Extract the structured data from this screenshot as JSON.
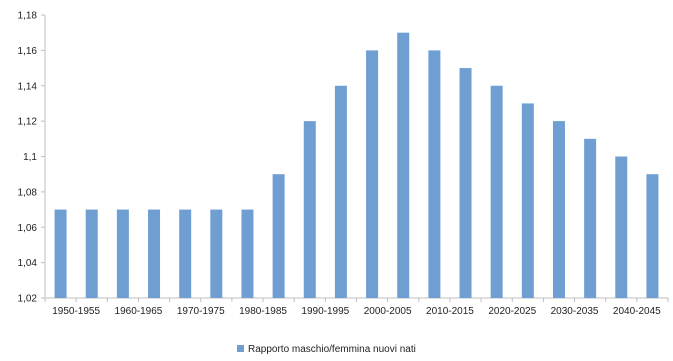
{
  "chart_data": {
    "type": "bar",
    "title": "",
    "xlabel": "",
    "ylabel": "",
    "ylim": [
      1.02,
      1.18
    ],
    "grid": false,
    "legend_position": "bottom",
    "y_ticks": [
      {
        "value": 1.02,
        "label": "1,02"
      },
      {
        "value": 1.04,
        "label": "1,04"
      },
      {
        "value": 1.06,
        "label": "1,06"
      },
      {
        "value": 1.08,
        "label": "1,08"
      },
      {
        "value": 1.1,
        "label": "1,1"
      },
      {
        "value": 1.12,
        "label": "1,12"
      },
      {
        "value": 1.14,
        "label": "1,14"
      },
      {
        "value": 1.16,
        "label": "1,16"
      },
      {
        "value": 1.18,
        "label": "1,18"
      }
    ],
    "categories": [
      "1950-1955",
      "1955-1960",
      "1960-1965",
      "1965-1970",
      "1970-1975",
      "1975-1980",
      "1980-1985",
      "1985-1990",
      "1990-1995",
      "1995-2000",
      "2000-2005",
      "2005-2010",
      "2010-2015",
      "2015-2020",
      "2020-2025",
      "2025-2030",
      "2030-2035",
      "2035-2040",
      "2040-2045",
      "2045-2050"
    ],
    "x_tick_labels": [
      "1950-1955",
      "1960-1965",
      "1970-1975",
      "1980-1985",
      "1990-1995",
      "2000-2005",
      "2010-2015",
      "2020-2025",
      "2030-2035",
      "2040-2045"
    ],
    "series": [
      {
        "name": "Rapporto maschio/femmina nuovi nati",
        "color": "#6f9fd2",
        "values": [
          1.07,
          1.07,
          1.07,
          1.07,
          1.07,
          1.07,
          1.07,
          1.09,
          1.12,
          1.14,
          1.16,
          1.17,
          1.16,
          1.15,
          1.14,
          1.13,
          1.12,
          1.11,
          1.1,
          1.09
        ]
      }
    ]
  }
}
